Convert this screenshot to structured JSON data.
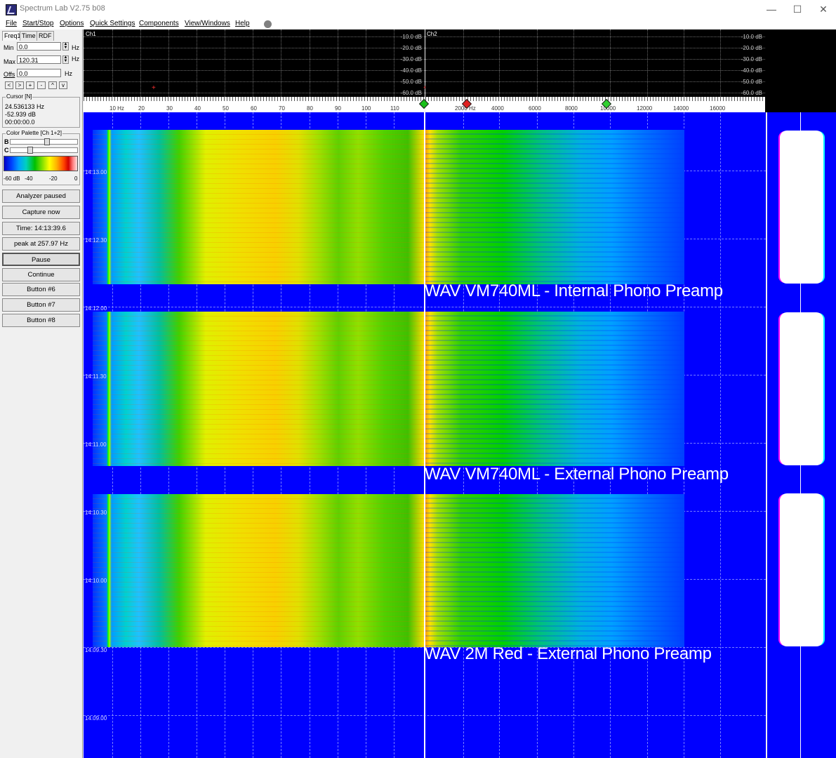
{
  "window": {
    "title": "Spectrum Lab V2.75 b08",
    "controls": [
      "—",
      "☐",
      "✕"
    ]
  },
  "menu": [
    "File",
    "Start/Stop",
    "Options",
    "Quick Settings",
    "Components",
    "View/Windows",
    "Help"
  ],
  "left_panel": {
    "tabs": [
      "Freq1",
      "Time",
      "RDF"
    ],
    "min_label": "Min",
    "min_value": "0.0",
    "max_label": "Max",
    "max_value": "120.31",
    "offs_label": "Offs",
    "offs_value": "0.0",
    "unit_hz": "Hz",
    "scroll_buttons": [
      "<",
      ">",
      "+",
      "-",
      "^",
      "v"
    ],
    "cursor_title": "Cursor [N]",
    "cursor_freq": "24.536133 Hz",
    "cursor_db": "-52.939 dB",
    "cursor_time": "00:00:00.0",
    "palette_title": "Color Palette [Ch 1+2]",
    "palette_b": "B",
    "palette_c": "C",
    "palette_labels": [
      "-60 dB",
      "-40",
      "-20",
      "0"
    ],
    "buttons": [
      "Analyzer paused",
      "Capture now",
      "Time:  14:13:39.6",
      "peak at 257.97 Hz",
      "Pause",
      "Continue",
      "Button #6",
      "Button #7",
      "Button #8"
    ]
  },
  "spectrum": {
    "ch1_label": "Ch1",
    "ch2_label": "Ch2",
    "db_labels": [
      "-10.0 dB",
      "-20.0 dB",
      "-30.0 dB",
      "-40.0 dB",
      "-50.0 dB",
      "-60.0 dB"
    ],
    "ch1_freq_labels": [
      "10 Hz",
      "20",
      "30",
      "40",
      "50",
      "60",
      "70",
      "80",
      "90",
      "100",
      "110"
    ],
    "ch2_freq_labels": [
      "2000 Hz",
      "4000",
      "6000",
      "8000",
      "10000",
      "12000",
      "14000",
      "16000"
    ],
    "marker_colors": [
      "#18c018",
      "#e02020",
      "#30d030"
    ]
  },
  "waterfall": {
    "time_labels": [
      "14.13.00",
      "14.12.30",
      "14.12.00",
      "14.11.30",
      "14.11.00",
      "14.10.30",
      "14.10.00",
      "14.09.30",
      "14.09.00"
    ],
    "captions": [
      "WAV VM740ML - Internal Phono Preamp",
      "WAV VM740ML - External Phono Preamp",
      "WAV 2M Red - External Phono Preamp"
    ]
  }
}
